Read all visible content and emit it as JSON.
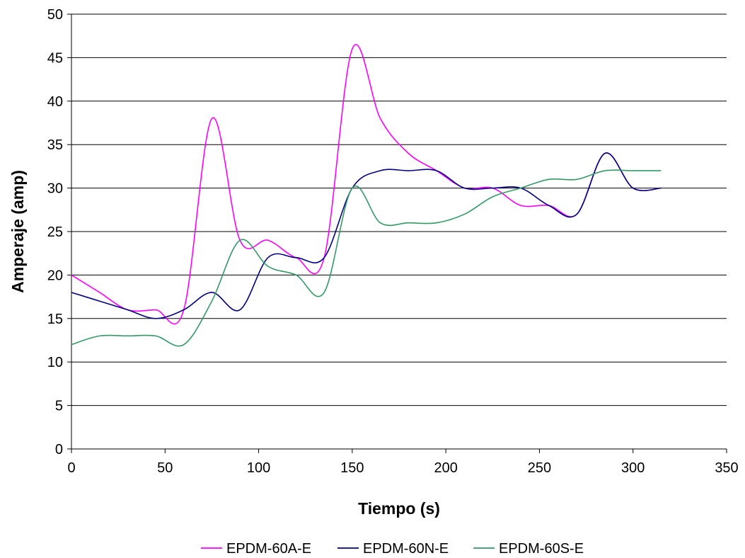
{
  "chart_data": {
    "type": "line",
    "title": "",
    "xlabel": "Tiempo (s)",
    "ylabel": "Amperaje (amp)",
    "xlim": [
      0,
      350
    ],
    "ylim": [
      0,
      50
    ],
    "xticks": [
      0,
      50,
      100,
      150,
      200,
      250,
      300,
      350
    ],
    "yticks": [
      0,
      5,
      10,
      15,
      20,
      25,
      30,
      35,
      40,
      45,
      50
    ],
    "grid": "horizontal",
    "legend_position": "bottom",
    "series": [
      {
        "name": "EPDM-60A-E",
        "color": "#ff00ff",
        "points": [
          [
            0,
            20
          ],
          [
            15,
            18
          ],
          [
            30,
            16
          ],
          [
            45,
            16
          ],
          [
            60,
            16
          ],
          [
            75,
            38
          ],
          [
            90,
            24
          ],
          [
            105,
            24
          ],
          [
            120,
            22
          ],
          [
            135,
            22
          ],
          [
            150,
            46
          ],
          [
            165,
            38
          ],
          [
            180,
            34
          ],
          [
            195,
            32
          ],
          [
            210,
            30
          ],
          [
            225,
            30
          ],
          [
            240,
            28
          ],
          [
            255,
            28
          ],
          [
            270,
            27
          ],
          [
            285,
            34
          ],
          [
            300,
            30
          ],
          [
            315,
            30
          ]
        ]
      },
      {
        "name": "EPDM-60N-E",
        "color": "#000080",
        "points": [
          [
            0,
            18
          ],
          [
            15,
            17
          ],
          [
            30,
            16
          ],
          [
            45,
            15
          ],
          [
            60,
            16
          ],
          [
            75,
            18
          ],
          [
            90,
            16
          ],
          [
            105,
            22
          ],
          [
            120,
            22
          ],
          [
            135,
            22
          ],
          [
            150,
            30
          ],
          [
            165,
            32
          ],
          [
            180,
            32
          ],
          [
            195,
            32
          ],
          [
            210,
            30
          ],
          [
            225,
            30
          ],
          [
            240,
            30
          ],
          [
            255,
            28
          ],
          [
            270,
            27
          ],
          [
            285,
            34
          ],
          [
            300,
            30
          ],
          [
            315,
            30
          ]
        ]
      },
      {
        "name": "EPDM-60S-E",
        "color": "#339966",
        "points": [
          [
            0,
            12
          ],
          [
            15,
            13
          ],
          [
            30,
            13
          ],
          [
            45,
            13
          ],
          [
            60,
            12
          ],
          [
            75,
            17
          ],
          [
            90,
            24
          ],
          [
            105,
            21
          ],
          [
            120,
            20
          ],
          [
            135,
            18
          ],
          [
            150,
            30
          ],
          [
            165,
            26
          ],
          [
            180,
            26
          ],
          [
            195,
            26
          ],
          [
            210,
            27
          ],
          [
            225,
            29
          ],
          [
            240,
            30
          ],
          [
            255,
            31
          ],
          [
            270,
            31
          ],
          [
            285,
            32
          ],
          [
            300,
            32
          ],
          [
            315,
            32
          ]
        ]
      }
    ]
  }
}
